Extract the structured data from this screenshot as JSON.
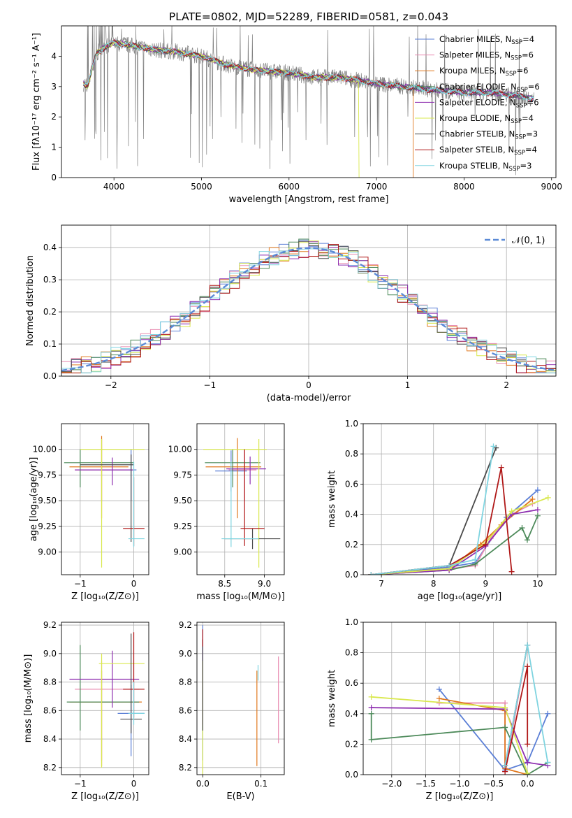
{
  "figure": {
    "title": "PLATE=0802, MJD=52289, FIBERID=0581, z=0.043"
  },
  "colors": {
    "Chabrier MILES": "#5b7fd6",
    "Salpeter MILES": "#e88ab0",
    "Kroupa MILES": "#e0781e",
    "Chabrier ELODIE": "#4d8a5a",
    "Salpeter ELODIE": "#8e2fb0",
    "Kroupa ELODIE": "#d9e84e",
    "Chabrier STELIB": "#4a4a4a",
    "Salpeter STELIB": "#b01818",
    "Kroupa STELIB": "#7fd4e0",
    "data": "#808080",
    "normal": "#5b8ad6"
  },
  "chart_data": [
    {
      "id": "spectrum",
      "type": "line",
      "xlabel": "wavelength [Angstrom, rest frame]",
      "ylabel": "Flux [fλ10⁻¹⁷ erg cm⁻² s⁻¹ A⁻¹]",
      "xlim": [
        3400,
        9050
      ],
      "ylim": [
        0,
        5
      ],
      "xticks": [
        4000,
        5000,
        6000,
        7000,
        8000,
        9000
      ],
      "yticks": [
        0,
        1,
        2,
        3,
        4
      ],
      "legend_loc": "right",
      "legend": [
        {
          "label": "Chabrier MILES, N",
          "sub": "SSP",
          "n": "=4",
          "series": "Chabrier MILES"
        },
        {
          "label": "Salpeter MILES, N",
          "sub": "SSP",
          "n": "=6",
          "series": "Salpeter MILES"
        },
        {
          "label": "Kroupa MILES, N",
          "sub": "SSP",
          "n": "=6",
          "series": "Kroupa MILES"
        },
        {
          "label": "Chabrier ELODIE, N",
          "sub": "SSP",
          "n": "=6",
          "series": "Chabrier ELODIE"
        },
        {
          "label": "Salpeter ELODIE, N",
          "sub": "SSP",
          "n": "=6",
          "series": "Salpeter ELODIE"
        },
        {
          "label": "Kroupa ELODIE, N",
          "sub": "SSP",
          "n": "=4",
          "series": "Kroupa ELODIE"
        },
        {
          "label": "Chabrier STELIB, N",
          "sub": "SSP",
          "n": "=3",
          "series": "Chabrier STELIB"
        },
        {
          "label": "Salpeter STELIB, N",
          "sub": "SSP",
          "n": "=4",
          "series": "Salpeter STELIB"
        },
        {
          "label": "Kroupa STELIB, N",
          "sub": "SSP",
          "n": "=3",
          "series": "Kroupa STELIB"
        }
      ],
      "continuum": {
        "x": [
          3650,
          3700,
          3750,
          3800,
          3900,
          4000,
          4100,
          4300,
          4500,
          4700,
          5000,
          5300,
          5600,
          6000,
          6300,
          6600,
          7000,
          7300,
          7600,
          8000,
          8300,
          8600,
          8800
        ],
        "y": [
          3.1,
          3.0,
          3.6,
          4.1,
          4.3,
          4.45,
          4.4,
          4.3,
          4.2,
          4.15,
          4.0,
          3.7,
          3.55,
          3.45,
          3.3,
          3.3,
          3.1,
          3.0,
          2.9,
          2.8,
          2.8,
          2.7,
          2.6
        ]
      },
      "models_visible_until": {
        "Kroupa MILES": 7420,
        "Kroupa ELODIE": 6800,
        "Chabrier MILES": 9000,
        "Kroupa STELIB": 9000
      }
    },
    {
      "id": "residuals",
      "type": "line",
      "xlabel": "(data-model)/error",
      "ylabel": "Normed distribution",
      "xlim": [
        -2.5,
        2.5
      ],
      "ylim": [
        0,
        0.47
      ],
      "xticks": [
        -2,
        -1,
        0,
        1,
        2
      ],
      "yticks": [
        0.0,
        0.1,
        0.2,
        0.3,
        0.4
      ],
      "legend_loc": "top-right",
      "legend": [
        {
          "label": "𝒩(0, 1)",
          "series": "normal"
        }
      ],
      "normal": {
        "mu": 0,
        "sigma": 1,
        "style": "dashed"
      },
      "bin_width": 0.1
    },
    {
      "id": "age_vs_Z",
      "type": "scatter",
      "xlabel": "Z [log₁₀(Z/Z⊙)]",
      "ylabel": "age  [log₁₀(age/yr)]",
      "xlim": [
        -1.35,
        0.28
      ],
      "ylim": [
        8.78,
        10.25
      ],
      "xticks": [
        -1,
        0
      ],
      "yticks": [
        9.0,
        9.25,
        9.5,
        9.75,
        10.0
      ],
      "points": [
        {
          "series": "Chabrier MILES",
          "x": -0.05,
          "y": 9.8,
          "xerr": [
            0.9,
            0.1
          ],
          "yerr": [
            0.3,
            0.2
          ]
        },
        {
          "series": "Salpeter MILES",
          "x": -0.6,
          "y": 9.8,
          "xerr": [
            0.5,
            0.5
          ],
          "yerr": [
            0.3,
            0.3
          ]
        },
        {
          "series": "Kroupa MILES",
          "x": -0.6,
          "y": 9.83,
          "xerr": [
            0.6,
            0.5
          ],
          "yerr": [
            0.5,
            0.3
          ]
        },
        {
          "series": "Chabrier ELODIE",
          "x": -1.0,
          "y": 9.87,
          "xerr": [
            0.3,
            1.0
          ],
          "yerr": [
            0.24,
            0.13
          ]
        },
        {
          "series": "Salpeter ELODIE",
          "x": -0.4,
          "y": 9.8,
          "xerr": [
            0.7,
            0.4
          ],
          "yerr": [
            0.15,
            0.12
          ]
        },
        {
          "series": "Kroupa ELODIE",
          "x": -0.6,
          "y": 10.0,
          "xerr": [
            0.4,
            0.8
          ],
          "yerr": [
            1.15,
            0.1
          ]
        },
        {
          "series": "Chabrier STELIB",
          "x": -0.05,
          "y": 9.85,
          "xerr": [
            0.95,
            0.05
          ],
          "yerr": [
            0.75,
            0.1
          ]
        },
        {
          "series": "Salpeter STELIB",
          "x": 0.0,
          "y": 9.23,
          "xerr": [
            0.2,
            0.2
          ],
          "yerr": [
            0.17,
            0.5
          ]
        },
        {
          "series": "Kroupa STELIB",
          "x": 0.0,
          "y": 9.13,
          "xerr": [
            0.1,
            0.2
          ],
          "yerr": [
            0.08,
            0.75
          ]
        }
      ]
    },
    {
      "id": "age_vs_mass",
      "type": "scatter",
      "xlabel": "mass [log₁₀(M/M⊙)]",
      "ylabel": "",
      "xlim": [
        8.15,
        9.25
      ],
      "ylim": [
        8.78,
        10.25
      ],
      "xticks": [
        8.5,
        9.0
      ],
      "yticks": [
        9.0,
        9.25,
        9.5,
        9.75,
        10.0
      ],
      "points": [
        {
          "series": "Chabrier MILES",
          "x": 8.58,
          "y": 9.79,
          "xerr": [
            0.2,
            0.2
          ],
          "yerr": [
            0.2,
            0.2
          ]
        },
        {
          "series": "Salpeter MILES",
          "x": 8.75,
          "y": 9.8,
          "xerr": [
            0.2,
            0.15
          ],
          "yerr": [
            0.3,
            0.2
          ]
        },
        {
          "series": "Kroupa MILES",
          "x": 8.66,
          "y": 9.83,
          "xerr": [
            0.4,
            0.3
          ],
          "yerr": [
            0.5,
            0.28
          ]
        },
        {
          "series": "Chabrier ELODIE",
          "x": 8.6,
          "y": 9.87,
          "xerr": [
            0.35,
            0.35
          ],
          "yerr": [
            0.24,
            0.13
          ]
        },
        {
          "series": "Salpeter ELODIE",
          "x": 8.82,
          "y": 9.81,
          "xerr": [
            0.3,
            0.2
          ],
          "yerr": [
            0.15,
            0.12
          ]
        },
        {
          "series": "Kroupa ELODIE",
          "x": 8.93,
          "y": 10.0,
          "xerr": [
            0.7,
            0.1
          ],
          "yerr": [
            1.15,
            0.1
          ]
        },
        {
          "series": "Chabrier STELIB",
          "x": 8.85,
          "y": 9.13,
          "xerr": [
            0.35,
            0.35
          ],
          "yerr": [
            0.1,
            0.1
          ]
        },
        {
          "series": "Salpeter STELIB",
          "x": 8.75,
          "y": 9.23,
          "xerr": [
            0.05,
            0.25
          ],
          "yerr": [
            0.17,
            0.77
          ]
        },
        {
          "series": "Kroupa STELIB",
          "x": 8.58,
          "y": 9.13,
          "xerr": [
            0.12,
            0.35
          ],
          "yerr": [
            0.08,
            0.75
          ]
        }
      ]
    },
    {
      "id": "massweight_vs_age",
      "type": "line",
      "xlabel": "age  [log₁₀(age/yr)]",
      "ylabel": "mass weight",
      "xlim": [
        6.65,
        10.35
      ],
      "ylim": [
        0,
        1
      ],
      "xticks": [
        7,
        8,
        9,
        10
      ],
      "yticks": [
        0.0,
        0.2,
        0.4,
        0.6,
        0.8,
        1.0
      ],
      "series": [
        {
          "name": "Chabrier MILES",
          "x": [
            6.8,
            8.3,
            8.8,
            9.4,
            10.0
          ],
          "y": [
            0.0,
            0.05,
            0.08,
            0.38,
            0.56
          ]
        },
        {
          "name": "Salpeter MILES",
          "x": [
            6.8,
            8.3,
            8.8,
            9.1,
            9.5,
            9.9
          ],
          "y": [
            0.0,
            0.04,
            0.06,
            0.24,
            0.4,
            0.47
          ]
        },
        {
          "name": "Kroupa MILES",
          "x": [
            6.8,
            8.3,
            8.9,
            9.3,
            9.9
          ],
          "y": [
            0.0,
            0.04,
            0.2,
            0.33,
            0.5
          ]
        },
        {
          "name": "Chabrier ELODIE",
          "x": [
            6.8,
            8.3,
            8.8,
            9.7,
            9.8,
            10.0
          ],
          "y": [
            0.0,
            0.03,
            0.07,
            0.31,
            0.23,
            0.39
          ]
        },
        {
          "name": "Salpeter ELODIE",
          "x": [
            6.8,
            8.3,
            9.0,
            9.5,
            10.0
          ],
          "y": [
            0.0,
            0.03,
            0.19,
            0.4,
            0.43
          ]
        },
        {
          "name": "Kroupa ELODIE",
          "x": [
            6.8,
            8.3,
            9.0,
            9.5,
            10.2
          ],
          "y": [
            0.0,
            0.04,
            0.21,
            0.42,
            0.51
          ]
        },
        {
          "name": "Chabrier STELIB",
          "x": [
            6.8,
            8.3,
            9.2
          ],
          "y": [
            0.0,
            0.06,
            0.84
          ]
        },
        {
          "name": "Salpeter STELIB",
          "x": [
            6.8,
            8.3,
            9.0,
            9.3,
            9.5
          ],
          "y": [
            0.0,
            0.06,
            0.2,
            0.71,
            0.02
          ]
        },
        {
          "name": "Kroupa STELIB",
          "x": [
            6.8,
            8.3,
            8.8,
            9.15
          ],
          "y": [
            0.0,
            0.06,
            0.1,
            0.85
          ]
        }
      ]
    },
    {
      "id": "mass_vs_Z",
      "type": "scatter",
      "xlabel": "Z [log₁₀(Z/Z⊙)]",
      "ylabel": "mass [log₁₀(M/M⊙)]",
      "xlim": [
        -1.35,
        0.28
      ],
      "ylim": [
        8.15,
        9.22
      ],
      "xticks": [
        -1,
        0
      ],
      "yticks": [
        8.2,
        8.4,
        8.6,
        8.8,
        9.0,
        9.2
      ],
      "points": [
        {
          "series": "Chabrier MILES",
          "x": -0.05,
          "y": 8.58,
          "xerr": [
            0.25,
            0.25
          ],
          "yerr": [
            0.3,
            0.2
          ]
        },
        {
          "series": "Salpeter MILES",
          "x": -0.6,
          "y": 8.75,
          "xerr": [
            0.5,
            0.7
          ],
          "yerr": [
            0.5,
            0.2
          ]
        },
        {
          "series": "Kroupa MILES",
          "x": -0.6,
          "y": 8.66,
          "xerr": [
            0.6,
            0.75
          ],
          "yerr": [
            0.45,
            0.22
          ]
        },
        {
          "series": "Chabrier ELODIE",
          "x": -1.0,
          "y": 8.66,
          "xerr": [
            0.25,
            1.1
          ],
          "yerr": [
            0.2,
            0.4
          ]
        },
        {
          "series": "Salpeter ELODIE",
          "x": -0.4,
          "y": 8.82,
          "xerr": [
            0.8,
            0.5
          ],
          "yerr": [
            0.2,
            0.2
          ]
        },
        {
          "series": "Kroupa ELODIE",
          "x": -0.6,
          "y": 8.93,
          "xerr": [
            0.05,
            0.8
          ],
          "yerr": [
            0.73,
            0.07
          ]
        },
        {
          "series": "Chabrier STELIB",
          "x": -0.05,
          "y": 8.54,
          "xerr": [
            0.2,
            0.2
          ],
          "yerr": [
            0.1,
            0.6
          ]
        },
        {
          "series": "Salpeter STELIB",
          "x": 0.0,
          "y": 8.75,
          "xerr": [
            0.2,
            0.2
          ],
          "yerr": [
            0.2,
            0.4
          ]
        },
        {
          "series": "Kroupa STELIB",
          "x": 0.0,
          "y": 8.58,
          "xerr": [
            0.1,
            0.2
          ],
          "yerr": [
            0.08,
            0.22
          ]
        }
      ]
    },
    {
      "id": "mass_vs_EBV",
      "type": "scatter",
      "xlabel": "E(B-V)",
      "ylabel": "",
      "xlim": [
        -0.01,
        0.14
      ],
      "ylim": [
        8.15,
        9.22
      ],
      "xticks": [
        0.0,
        0.1
      ],
      "yticks": [
        8.2,
        8.4,
        8.6,
        8.8,
        9.0,
        9.2
      ],
      "points": [
        {
          "series": "Chabrier MILES",
          "x": 0.0,
          "y": 8.55,
          "yerr": [
            0.3,
            0.65
          ]
        },
        {
          "series": "Salpeter MILES",
          "x": 0.13,
          "y": 8.75,
          "yerr": [
            0.38,
            0.23
          ]
        },
        {
          "series": "Kroupa MILES",
          "x": 0.093,
          "y": 8.66,
          "yerr": [
            0.45,
            0.22
          ]
        },
        {
          "series": "Chabrier ELODIE",
          "x": 0.0,
          "y": 8.7,
          "yerr": [
            0.24,
            0.4
          ]
        },
        {
          "series": "Salpeter ELODIE",
          "x": 0.0,
          "y": 8.8,
          "yerr": [
            0.3,
            0.3
          ]
        },
        {
          "series": "Kroupa ELODIE",
          "x": 0.0,
          "y": 8.5,
          "yerr": [
            0.35,
            0.45
          ]
        },
        {
          "series": "Chabrier STELIB",
          "x": 0.0,
          "y": 8.8,
          "yerr": [
            0.34,
            0.3
          ]
        },
        {
          "series": "Salpeter STELIB",
          "x": 0.0,
          "y": 9.1,
          "yerr": [
            0.05,
            0.07
          ]
        },
        {
          "series": "Kroupa STELIB",
          "x": 0.095,
          "y": 8.86,
          "yerr": [
            0.05,
            0.06
          ]
        }
      ]
    },
    {
      "id": "massweight_vs_Z",
      "type": "line",
      "xlabel": "Z [log₁₀(Z/Z⊙)]",
      "ylabel": "mass weight",
      "xlim": [
        -2.42,
        0.42
      ],
      "ylim": [
        0,
        1
      ],
      "xticks": [
        -2.0,
        -1.5,
        -1.0,
        -0.5,
        0.0
      ],
      "yticks": [
        0.0,
        0.2,
        0.4,
        0.6,
        0.8,
        1.0
      ],
      "series": [
        {
          "name": "Chabrier MILES",
          "x": [
            -1.3,
            -0.33,
            0.0,
            0.3
          ],
          "y": [
            0.56,
            0.03,
            0.08,
            0.4
          ]
        },
        {
          "name": "Salpeter MILES",
          "x": [
            -1.3,
            -0.33,
            -0.33,
            0.0
          ],
          "y": [
            0.47,
            0.47,
            0.02,
            0.85
          ]
        },
        {
          "name": "Kroupa MILES",
          "x": [
            -1.3,
            -0.33,
            -0.33,
            0.0
          ],
          "y": [
            0.5,
            0.42,
            0.04,
            0.0
          ]
        },
        {
          "name": "Chabrier ELODIE",
          "x": [
            -2.3,
            -2.3,
            -0.33,
            0.0,
            0.3
          ],
          "y": [
            0.4,
            0.23,
            0.31,
            0.0,
            0.08
          ]
        },
        {
          "name": "Salpeter ELODIE",
          "x": [
            -2.3,
            -0.33,
            0.0,
            0.3
          ],
          "y": [
            0.44,
            0.43,
            0.08,
            0.06
          ]
        },
        {
          "name": "Kroupa ELODIE",
          "x": [
            -2.3,
            -0.33,
            0.0
          ],
          "y": [
            0.51,
            0.44,
            0.01
          ]
        },
        {
          "name": "Chabrier STELIB",
          "x": [
            -0.33,
            0.0
          ],
          "y": [
            0.06,
            0.85
          ]
        },
        {
          "name": "Salpeter STELIB",
          "x": [
            -0.33,
            0.0,
            0.0
          ],
          "y": [
            0.02,
            0.71,
            0.2
          ]
        },
        {
          "name": "Kroupa STELIB",
          "x": [
            -0.33,
            0.0,
            0.3
          ],
          "y": [
            0.06,
            0.85,
            0.08
          ]
        }
      ]
    }
  ]
}
